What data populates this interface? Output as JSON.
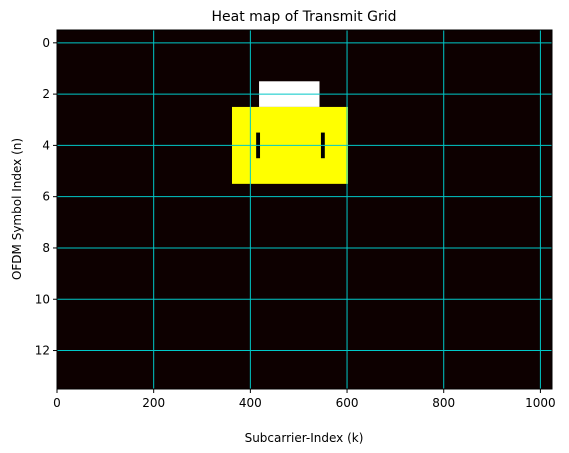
{
  "chart_data": {
    "type": "heatmap",
    "title": "Heat map of Transmit Grid",
    "xlabel": "Subcarrier-Index (k)",
    "ylabel": "OFDM Symbol Index (n)",
    "xlim": [
      0,
      1024
    ],
    "ylim": [
      13.5,
      -0.5
    ],
    "x_ticks": [
      0,
      200,
      400,
      600,
      800,
      1000
    ],
    "y_ticks": [
      0,
      2,
      4,
      6,
      8,
      10,
      12
    ],
    "grid": true,
    "grid_color": "#00c8c8",
    "background_color": "#0d0000",
    "cells": [
      {
        "x0": 418,
        "x1": 543,
        "y0": 1.5,
        "y1": 2.5,
        "color": "#ffffff"
      },
      {
        "x0": 362,
        "x1": 602,
        "y0": 2.5,
        "y1": 5.5,
        "color": "#ffff00"
      },
      {
        "x0": 412,
        "x1": 420,
        "y0": 3.5,
        "y1": 4.5,
        "color": "#000000"
      },
      {
        "x0": 546,
        "x1": 554,
        "y0": 3.5,
        "y1": 4.5,
        "color": "#000000"
      }
    ]
  }
}
